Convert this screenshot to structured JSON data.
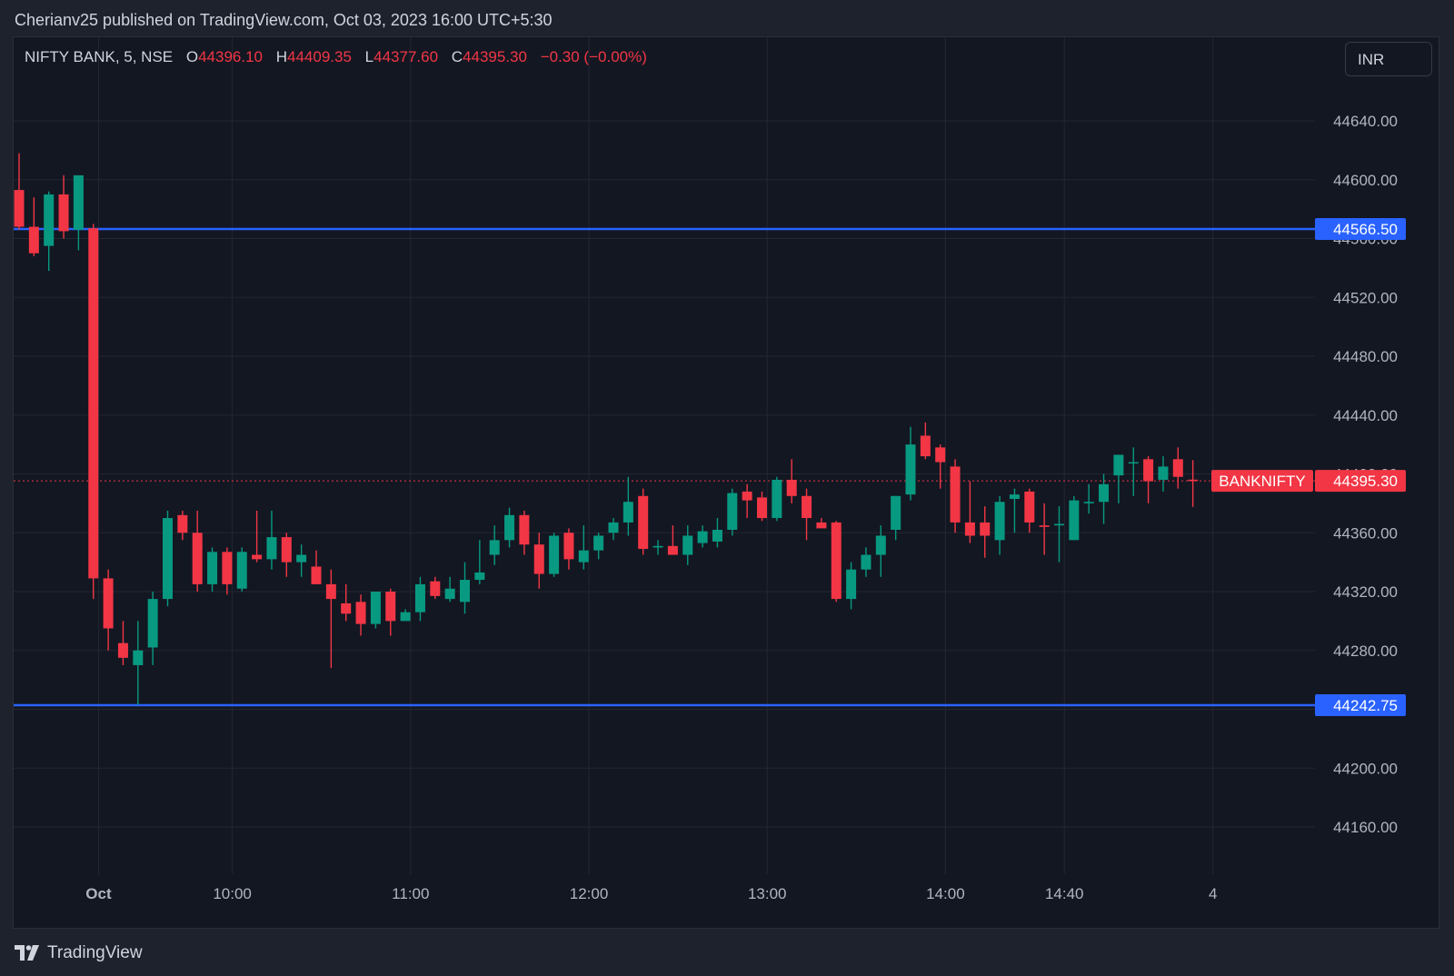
{
  "header": {
    "published_by": "Cherianv25 published on TradingView.com, Oct 03, 2023 16:00 UTC+5:30"
  },
  "legend": {
    "symbol": "NIFTY BANK, 5, NSE",
    "o_label": "O",
    "o_value": "44396.10",
    "h_label": "H",
    "h_value": "44409.35",
    "l_label": "L",
    "l_value": "44377.60",
    "c_label": "C",
    "c_value": "44395.30",
    "change": "−0.30 (−0.00%)"
  },
  "currency": "INR",
  "footer": {
    "brand": "TradingView",
    "logo_icon": "tradingview-logo-icon"
  },
  "colors": {
    "up": "#089981",
    "down": "#f23645",
    "level_line": "#2962ff",
    "background": "#131722",
    "grid": "#232733",
    "axis_text": "#b2b5be"
  },
  "chart_data": {
    "type": "candlestick",
    "ylim": [
      44125,
      44680
    ],
    "y_ticks": [
      "44640.00",
      "44600.00",
      "44560.00",
      "44520.00",
      "44480.00",
      "44440.00",
      "44400.00",
      "44360.00",
      "44320.00",
      "44280.00",
      "44240.00",
      "44200.00",
      "44160.00"
    ],
    "x_ticks": [
      {
        "label": "Oct",
        "bar": 5.35
      },
      {
        "label": "10:00",
        "bar": 14.35
      },
      {
        "label": "11:00",
        "bar": 26.35
      },
      {
        "label": "12:00",
        "bar": 38.35
      },
      {
        "label": "13:00",
        "bar": 50.35
      },
      {
        "label": "14:00",
        "bar": 62.35
      },
      {
        "label": "14:40",
        "bar": 70.35
      },
      {
        "label": "4",
        "bar": 80.35
      }
    ],
    "horizontal_levels": [
      {
        "value": 44566.5,
        "label": "44566.50"
      },
      {
        "value": 44242.75,
        "label": "44242.75"
      }
    ],
    "last_price": {
      "value": 44395.3,
      "symbol_label": "BANKNIFTY",
      "price_label": "44395.30"
    },
    "candles": [
      [
        44593,
        44618,
        44566,
        44568
      ],
      [
        44568,
        44588,
        44548,
        44550
      ],
      [
        44555,
        44592,
        44538,
        44590
      ],
      [
        44590,
        44603,
        44560,
        44565
      ],
      [
        44566,
        44603,
        44552,
        44603
      ],
      [
        44567,
        44570,
        44315,
        44329
      ],
      [
        44329,
        44335,
        44280,
        44295
      ],
      [
        44285,
        44300,
        44270,
        44275
      ],
      [
        44270,
        44300,
        44243,
        44280
      ],
      [
        44282,
        44320,
        44270,
        44315
      ],
      [
        44315,
        44375,
        44310,
        44370
      ],
      [
        44372,
        44375,
        44355,
        44360
      ],
      [
        44360,
        44375,
        44320,
        44325
      ],
      [
        44325,
        44350,
        44320,
        44347
      ],
      [
        44347,
        44350,
        44318,
        44325
      ],
      [
        44322,
        44350,
        44320,
        44347
      ],
      [
        44345,
        44375,
        44340,
        44342
      ],
      [
        44342,
        44375,
        44335,
        44357
      ],
      [
        44357,
        44360,
        44330,
        44340
      ],
      [
        44340,
        44352,
        44330,
        44345
      ],
      [
        44337,
        44348,
        44325,
        44325
      ],
      [
        44325,
        44335,
        44268,
        44315
      ],
      [
        44312,
        44325,
        44300,
        44305
      ],
      [
        44313,
        44318,
        44290,
        44298
      ],
      [
        44298,
        44320,
        44295,
        44320
      ],
      [
        44320,
        44322,
        44290,
        44300
      ],
      [
        44300,
        44308,
        44300,
        44306
      ],
      [
        44306,
        44330,
        44300,
        44325
      ],
      [
        44327,
        44330,
        44315,
        44317
      ],
      [
        44315,
        44330,
        44313,
        44322
      ],
      [
        44313,
        44340,
        44305,
        44328
      ],
      [
        44328,
        44355,
        44325,
        44333
      ],
      [
        44345,
        44365,
        44338,
        44355
      ],
      [
        44355,
        44377,
        44350,
        44372
      ],
      [
        44372,
        44375,
        44345,
        44352
      ],
      [
        44352,
        44360,
        44322,
        44332
      ],
      [
        44332,
        44360,
        44330,
        44358
      ],
      [
        44360,
        44363,
        44335,
        44342
      ],
      [
        44340,
        44365,
        44335,
        44348
      ],
      [
        44348,
        44360,
        44342,
        44358
      ],
      [
        44360,
        44370,
        44355,
        44367
      ],
      [
        44367,
        44398,
        44358,
        44381
      ],
      [
        44385,
        44390,
        44345,
        44349
      ],
      [
        44350,
        44355,
        44345,
        44351
      ],
      [
        44351,
        44365,
        44345,
        44345
      ],
      [
        44345,
        44365,
        44338,
        44358
      ],
      [
        44353,
        44365,
        44350,
        44361
      ],
      [
        44354,
        44370,
        44350,
        44362
      ],
      [
        44362,
        44390,
        44358,
        44387
      ],
      [
        44388,
        44393,
        44370,
        44382
      ],
      [
        44384,
        44388,
        44368,
        44370
      ],
      [
        44370,
        44398,
        44368,
        44396
      ],
      [
        44396,
        44410,
        44380,
        44385
      ],
      [
        44385,
        44390,
        44355,
        44370
      ],
      [
        44367,
        44370,
        44365,
        44363
      ],
      [
        44367,
        44368,
        44313,
        44315
      ],
      [
        44315,
        44340,
        44308,
        44335
      ],
      [
        44335,
        44350,
        44330,
        44345
      ],
      [
        44345,
        44365,
        44330,
        44358
      ],
      [
        44362,
        44385,
        44355,
        44385
      ],
      [
        44386,
        44432,
        44382,
        44420
      ],
      [
        44426,
        44435,
        44410,
        44412
      ],
      [
        44418,
        44420,
        44390,
        44408
      ],
      [
        44405,
        44410,
        44360,
        44367
      ],
      [
        44367,
        44395,
        44353,
        44358
      ],
      [
        44367,
        44378,
        44343,
        44358
      ],
      [
        44355,
        44385,
        44345,
        44381
      ],
      [
        44383,
        44390,
        44360,
        44386
      ],
      [
        44388,
        44390,
        44360,
        44367
      ],
      [
        44365,
        44380,
        44345,
        44364
      ],
      [
        44365,
        44378,
        44340,
        44366
      ],
      [
        44355,
        44385,
        44355,
        44382
      ],
      [
        44380,
        44393,
        44373,
        44381
      ],
      [
        44381,
        44400,
        44366,
        44393
      ],
      [
        44399,
        44413,
        44380,
        44413
      ],
      [
        44408,
        44418,
        44385,
        44408
      ],
      [
        44410,
        44412,
        44380,
        44395
      ],
      [
        44396,
        44412,
        44388,
        44405
      ],
      [
        44410,
        44418,
        44390,
        44398
      ],
      [
        44396.1,
        44409.35,
        44377.6,
        44395.3
      ]
    ]
  }
}
